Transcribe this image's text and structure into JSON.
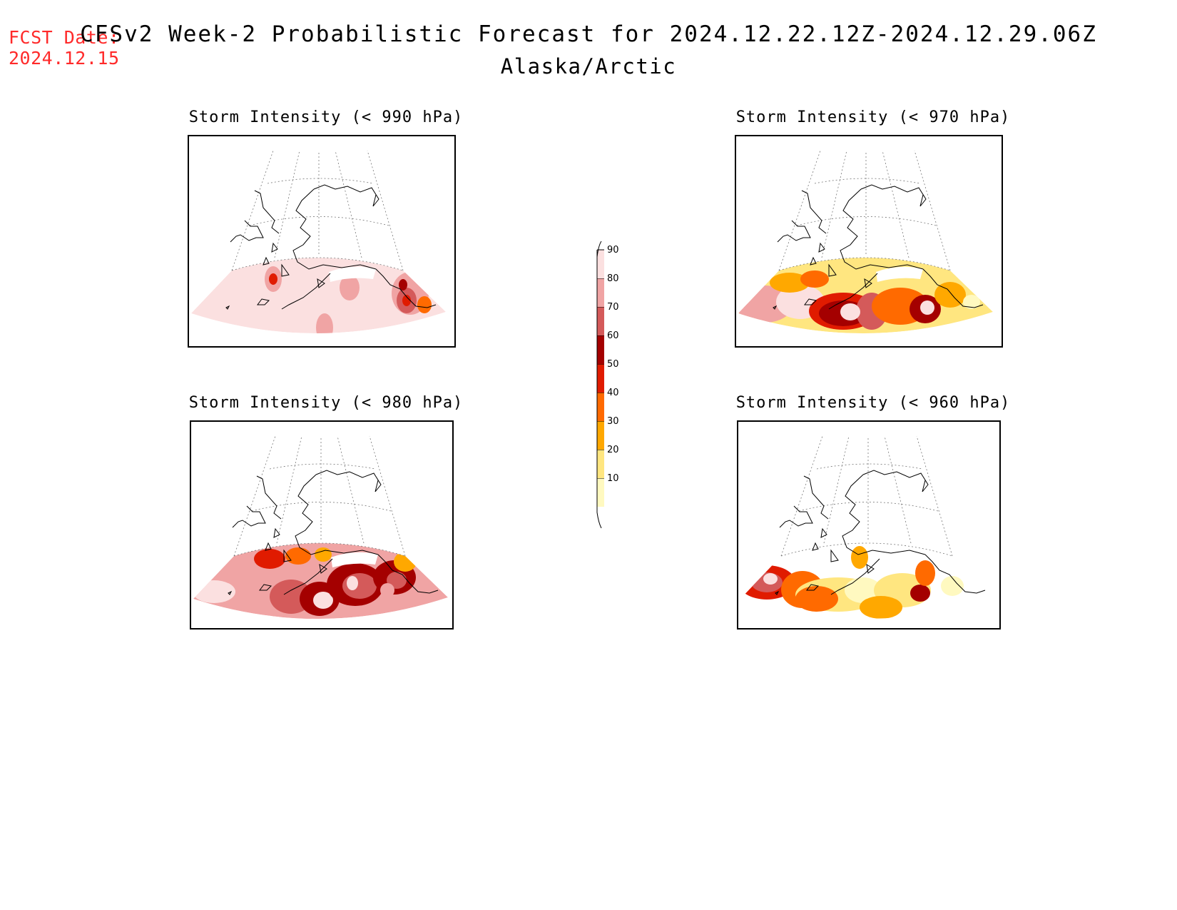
{
  "header": {
    "fcst_label": "FCST Date:",
    "fcst_date": "2024.12.15",
    "title": "CFSv2 Week-2 Probabilistic Forecast for 2024.12.22.12Z-2024.12.29.06Z",
    "region": "Alaska/Arctic"
  },
  "panels": [
    {
      "title": "Storm Intensity (< 990 hPa)"
    },
    {
      "title": "Storm Intensity (< 970 hPa)"
    },
    {
      "title": "Storm Intensity (< 980 hPa)"
    },
    {
      "title": "Storm Intensity (< 960 hPa)"
    }
  ],
  "colorbar": {
    "levels": [
      "10",
      "20",
      "30",
      "40",
      "50",
      "60",
      "70",
      "80",
      "90"
    ],
    "colors": [
      "#fff9c0",
      "#ffe680",
      "#ffa800",
      "#ff6a00",
      "#e01b00",
      "#a40000",
      "#d45a5a",
      "#f0a4a4",
      "#fbe0e0"
    ]
  }
}
